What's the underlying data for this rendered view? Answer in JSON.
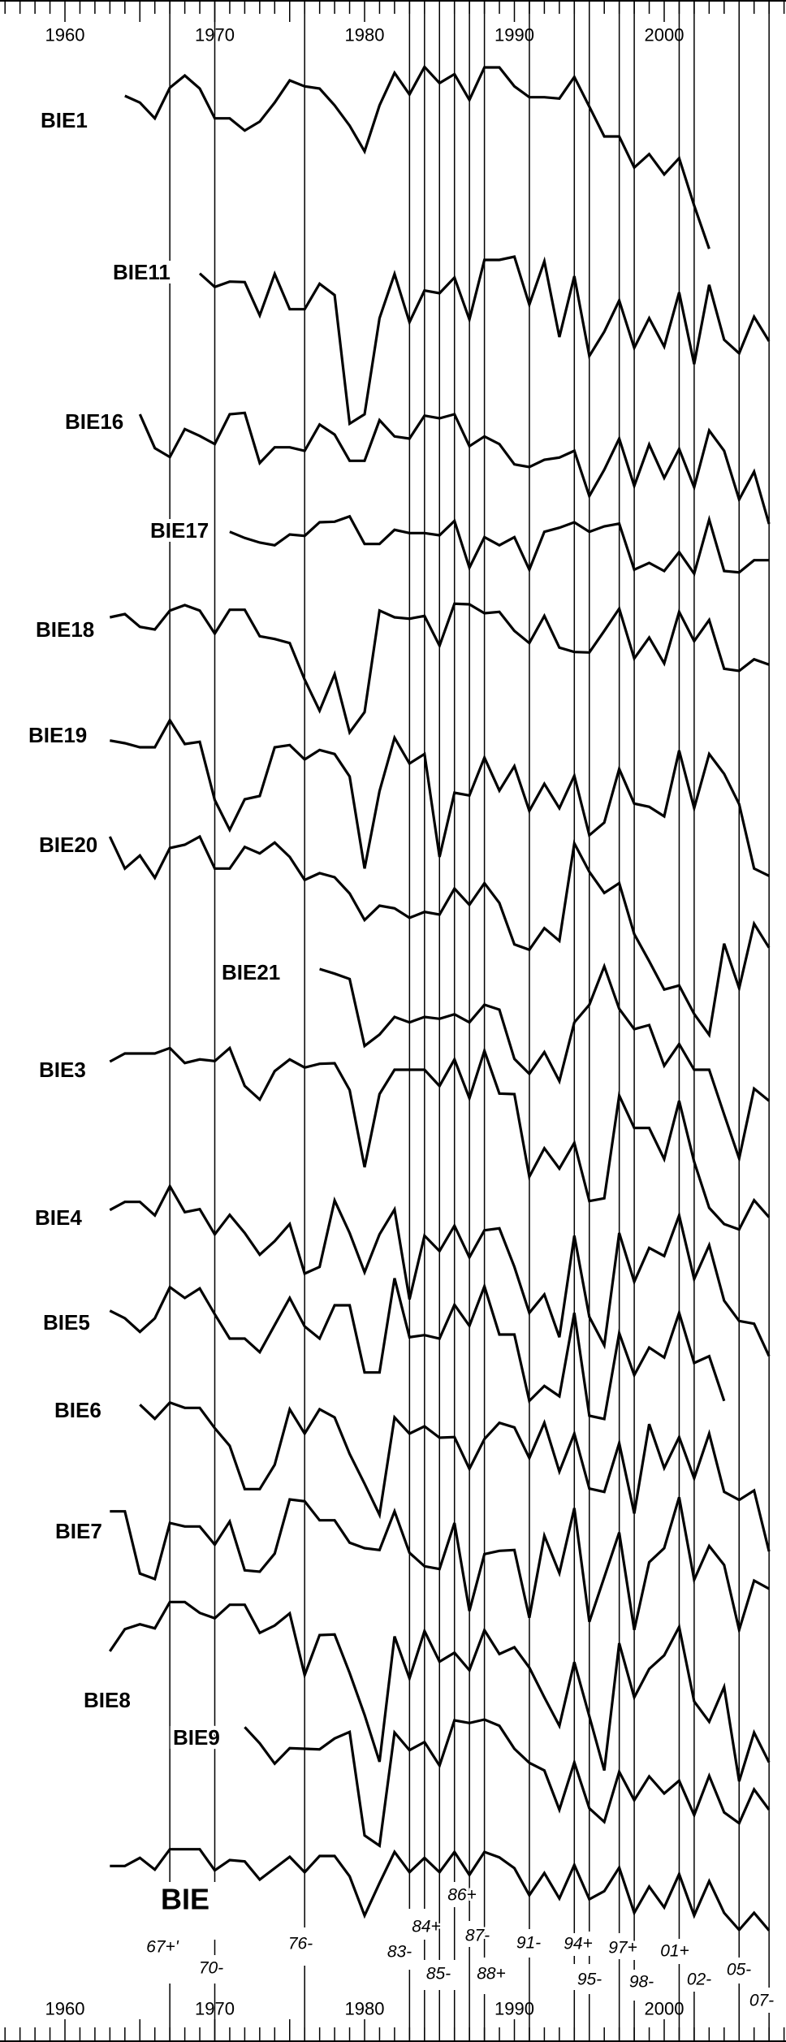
{
  "chart_data": {
    "type": "line",
    "title": "",
    "xlabel": "",
    "ylabel": "",
    "x_range": [
      1956,
      2008
    ],
    "x_tick_labels": [
      "1960",
      "1970",
      "1980",
      "1990",
      "2000"
    ],
    "x_tick_values": [
      1960,
      1970,
      1980,
      1990,
      2000
    ],
    "minor_tick_step": 1,
    "major_tick_step": 5,
    "axes": [
      "top",
      "bottom"
    ],
    "grid": false,
    "line_color": "#000000",
    "background": "#ffffff",
    "pointer_years": [
      {
        "year": 1967,
        "label": "67+'"
      },
      {
        "year": 1970,
        "label": "70-"
      },
      {
        "year": 1976,
        "label": "76-"
      },
      {
        "year": 1983,
        "label": "83-"
      },
      {
        "year": 1984,
        "label": "84+"
      },
      {
        "year": 1985,
        "label": "85-"
      },
      {
        "year": 1986,
        "label": "86+"
      },
      {
        "year": 1987,
        "label": "87-"
      },
      {
        "year": 1988,
        "label": "88+"
      },
      {
        "year": 1991,
        "label": "91-"
      },
      {
        "year": 1994,
        "label": "94+"
      },
      {
        "year": 1995,
        "label": "95-"
      },
      {
        "year": 1997,
        "label": "97+"
      },
      {
        "year": 1998,
        "label": "98-"
      },
      {
        "year": 2001,
        "label": "01+"
      },
      {
        "year": 2002,
        "label": "02-"
      },
      {
        "year": 2005,
        "label": "05-"
      },
      {
        "year": 2007,
        "label": "07-"
      }
    ],
    "series": [
      {
        "name": "BIE1",
        "start_year": 1964,
        "values": [
          0.9,
          0.65,
          0.07,
          1.2,
          1.65,
          1.17,
          0.07,
          0.07,
          -0.38,
          -0.05,
          0.65,
          1.47,
          1.25,
          1.17,
          0.55,
          -0.2,
          -1.15,
          0.55,
          1.75,
          0.95,
          1.97,
          1.37,
          1.7,
          0.75,
          1.95,
          1.95,
          1.25,
          0.85,
          0.85,
          0.8,
          1.6,
          0.5,
          -0.6,
          -0.6,
          -1.75,
          -1.25,
          -2.0,
          -1.4,
          -3.15,
          -4.75
        ]
      },
      {
        "name": "BIE11",
        "start_year": 1969,
        "values": [
          -0.05,
          -0.55,
          -0.35,
          -0.37,
          -1.6,
          -0.07,
          -1.37,
          -1.37,
          -0.43,
          -0.85,
          -5.6,
          -5.25,
          -1.7,
          -0.07,
          -1.85,
          -0.68,
          -0.78,
          -0.2,
          -1.75,
          0.45,
          0.45,
          0.57,
          -1.2,
          0.4,
          -2.4,
          -0.15,
          -3.1,
          -2.2,
          -1.05,
          -2.8,
          -1.7,
          -2.75,
          -0.75,
          -3.4,
          -0.47,
          -2.5,
          -3.0,
          -1.65,
          -2.55
        ]
      },
      {
        "name": "BIE16",
        "start_year": 1965,
        "values": [
          0.27,
          -0.98,
          -1.31,
          -0.28,
          -0.53,
          -0.83,
          0.27,
          0.32,
          -1.53,
          -0.95,
          -0.95,
          -1.08,
          -0.11,
          -0.48,
          -1.45,
          -1.45,
          0.05,
          -0.55,
          -0.63,
          0.22,
          0.12,
          0.27,
          -0.91,
          -0.55,
          -0.83,
          -1.58,
          -1.68,
          -1.41,
          -1.33,
          -1.08,
          -2.75,
          -1.78,
          -0.63,
          -2.38,
          -0.85,
          -2.08,
          -1.01,
          -2.43,
          -0.33,
          -1.08,
          -2.88,
          -1.85,
          -3.78
        ]
      },
      {
        "name": "BIE17",
        "start_year": 1971,
        "values": [
          -0.05,
          -0.28,
          -0.45,
          -0.55,
          -0.15,
          -0.2,
          0.3,
          0.32,
          0.52,
          -0.5,
          -0.5,
          0.02,
          -0.1,
          -0.1,
          -0.18,
          0.35,
          -1.38,
          -0.25,
          -0.55,
          -0.25,
          -1.45,
          -0.05,
          0.1,
          0.3,
          -0.05,
          0.15,
          0.25,
          -1.45,
          -1.2,
          -1.5,
          -0.8,
          -1.6,
          0.4,
          -1.5,
          -1.55,
          -1.1,
          -1.1
        ]
      },
      {
        "name": "BIE18",
        "start_year": 1963,
        "values": [
          0.45,
          0.57,
          0.1,
          0,
          0.7,
          0.9,
          0.7,
          -0.15,
          0.73,
          0.73,
          -0.25,
          -0.35,
          -0.5,
          -1.85,
          -3.0,
          -1.65,
          -3.8,
          -3.05,
          0.7,
          0.45,
          0.4,
          0.5,
          -0.6,
          0.95,
          0.93,
          0.6,
          0.65,
          -0.05,
          -0.5,
          0.5,
          -0.67,
          -0.83,
          -0.85,
          -0.05,
          0.77,
          -1.07,
          -0.3,
          -1.25,
          0.65,
          -0.43,
          0.35,
          -1.45,
          -1.53,
          -1.1,
          -1.3
        ]
      },
      {
        "name": "BIE19",
        "start_year": 1963,
        "values": [
          -0.2,
          -0.3,
          -0.45,
          -0.45,
          0.55,
          -0.33,
          -0.25,
          -2.4,
          -3.5,
          -2.37,
          -2.25,
          -0.45,
          -0.37,
          -0.9,
          -0.55,
          -0.7,
          -1.53,
          -4.93,
          -2.07,
          -0.1,
          -1.05,
          -0.7,
          -4.5,
          -2.13,
          -2.23,
          -0.83,
          -2.05,
          -1.15,
          -2.8,
          -1.8,
          -2.7,
          -1.5,
          -3.7,
          -3.23,
          -1.25,
          -2.53,
          -2.65,
          -3.0,
          -0.57,
          -2.7,
          -0.7,
          -1.43,
          -2.55,
          -4.93,
          -5.2
        ]
      },
      {
        "name": "BIE20",
        "start_year": 1963,
        "values": [
          0.3,
          -0.88,
          -0.4,
          -1.22,
          -0.12,
          0,
          0.3,
          -0.88,
          -0.88,
          -0.08,
          -0.32,
          0.08,
          -0.45,
          -1.3,
          -1.05,
          -1.2,
          -1.8,
          -2.78,
          -2.25,
          -2.35,
          -2.7,
          -2.48,
          -2.58,
          -1.62,
          -2.22,
          -1.42,
          -2.15,
          -3.68,
          -3.88,
          -3.08,
          -3.55,
          0.05,
          -1.0,
          -1.78,
          -1.42,
          -3.3,
          -4.3,
          -5.35,
          -5.2,
          -6.25,
          -7.02,
          -3.65,
          -5.3,
          -2.92,
          -3.8
        ]
      },
      {
        "name": "BIE21",
        "start_year": 1977,
        "values": [
          0.12,
          -0.05,
          -0.25,
          -2.72,
          -2.3,
          -1.65,
          -1.85,
          -1.65,
          -1.72,
          -1.55,
          -1.85,
          -1.2,
          -1.38,
          -3.2,
          -3.75,
          -2.95,
          -4.02,
          -1.85,
          -1.2,
          0.22,
          -1.35,
          -2.1,
          -1.95,
          -3.45,
          -2.65,
          -3.6,
          -3.6,
          -5.25,
          -6.88,
          -4.3,
          -4.75
        ]
      },
      {
        "name": "BIE3",
        "start_year": 1963,
        "values": [
          0.3,
          0.6,
          0.6,
          0.6,
          0.8,
          0.25,
          0.38,
          0.32,
          0.8,
          -0.6,
          -1.1,
          -0.05,
          0.38,
          0.08,
          0.22,
          0.24,
          -0.75,
          -3.6,
          -0.9,
          0,
          0,
          0,
          -0.6,
          0.38,
          -1.05,
          0.7,
          -0.88,
          -0.9,
          -3.95,
          -2.9,
          -3.65,
          -2.7,
          -4.85,
          -4.75,
          -0.95,
          -2.15,
          -2.15,
          -3.3,
          -1.15,
          -3.4,
          -5.1,
          -5.7,
          -5.9,
          -4.82,
          -5.45
        ]
      },
      {
        "name": "BIE4",
        "start_year": 1963,
        "values": [
          0.28,
          0.58,
          0.58,
          0.08,
          1.16,
          0.2,
          0.31,
          -0.62,
          0.1,
          -0.57,
          -1.37,
          -0.87,
          -0.24,
          -2.07,
          -1.82,
          0.63,
          -0.57,
          -2.02,
          -0.62,
          0.3,
          -3.02,
          -0.67,
          -1.24,
          -0.3,
          -1.47,
          -0.47,
          -0.4,
          -1.82,
          -3.52,
          -2.84,
          -4.42,
          -0.67,
          -3.67,
          -4.72,
          -0.57,
          -2.37,
          -1.12,
          -1.42,
          0.08,
          -2.27,
          -1.02,
          -3.07,
          -3.82,
          -3.92,
          -5.12
        ]
      },
      {
        "name": "BIE5",
        "start_year": 1963,
        "values": [
          0.43,
          0.15,
          -0.35,
          0.15,
          1.3,
          0.9,
          1.25,
          0.3,
          -0.6,
          -0.6,
          -1.1,
          -0.1,
          0.9,
          -0.15,
          -0.6,
          0.63,
          0.63,
          -1.85,
          -1.85,
          1.63,
          -0.55,
          -0.47,
          -0.6,
          0.65,
          -0.13,
          1.33,
          -0.45,
          -0.45,
          -2.9,
          -2.35,
          -2.73,
          0.35,
          -3.45,
          -3.57,
          -0.4,
          -1.95,
          -0.93,
          -1.3,
          0.35,
          -1.5,
          -1.25,
          -2.9
        ]
      },
      {
        "name": "BIE6",
        "start_year": 1965,
        "values": [
          0.2,
          -0.32,
          0.28,
          0.08,
          0.08,
          -0.67,
          -1.32,
          -2.92,
          -2.92,
          -2.02,
          0.03,
          -0.87,
          0.03,
          -0.27,
          -1.62,
          -2.72,
          -3.87,
          -0.27,
          -0.87,
          -0.6,
          -1.02,
          -1.0,
          -2.17,
          -1.07,
          -0.47,
          -0.64,
          -1.77,
          -0.47,
          -2.27,
          -0.87,
          -2.9,
          -3.02,
          -1.22,
          -3.82,
          -0.52,
          -2.14,
          -1.0,
          -2.52,
          -0.87,
          -3.02,
          -3.32,
          -2.97,
          -5.22
        ]
      },
      {
        "name": "BIE7",
        "start_year": 1963,
        "values": [
          0.73,
          0.73,
          -1.57,
          -1.77,
          0.3,
          0.17,
          0.17,
          -0.5,
          0.35,
          -1.45,
          -1.5,
          -0.83,
          1.17,
          1.1,
          0.4,
          0.4,
          -0.43,
          -0.63,
          -0.7,
          0.73,
          -0.8,
          -1.3,
          -1.4,
          0.3,
          -2.95,
          -0.85,
          -0.73,
          -0.7,
          -3.2,
          -0.17,
          -1.55,
          0.85,
          -3.35,
          -1.7,
          -0.05,
          -3.65,
          -1.15,
          -0.63,
          1.25,
          -1.8,
          -0.55,
          -1.25,
          -3.65,
          -1.83,
          -2.13
        ]
      },
      {
        "name": "BIE8",
        "start_year": 1963,
        "values": [
          0.78,
          1.6,
          1.78,
          1.63,
          2.6,
          2.6,
          2.2,
          2.0,
          2.5,
          2.5,
          1.46,
          1.73,
          2.18,
          -0.1,
          1.38,
          1.4,
          -0.02,
          -1.57,
          -3.3,
          1.33,
          -0.22,
          1.53,
          0.4,
          0.73,
          0.08,
          1.56,
          0.68,
          0.93,
          0.18,
          -0.92,
          -1.97,
          0.38,
          -1.62,
          -3.62,
          1.08,
          -0.92,
          0.13,
          0.63,
          1.68,
          -1.07,
          -1.82,
          -0.54,
          -4.02,
          -2.22,
          -3.32
        ]
      },
      {
        "name": "BIE9",
        "start_year": 1972,
        "values": [
          0.38,
          -0.22,
          -0.97,
          -0.4,
          -0.42,
          -0.44,
          -0.04,
          0.2,
          -3.62,
          -4.0,
          0.18,
          -0.47,
          -0.17,
          -1.04,
          0.63,
          0.53,
          0.66,
          0.43,
          -0.42,
          -0.94,
          -1.22,
          -2.67,
          -0.92,
          -2.62,
          -3.12,
          -1.27,
          -2.32,
          -1.44,
          -2.07,
          -1.6,
          -2.87,
          -1.42,
          -2.77,
          -3.17,
          -1.92,
          -2.67
        ]
      },
      {
        "name": "BIE",
        "start_year": 1963,
        "values": [
          0.08,
          0.08,
          0.38,
          -0.05,
          0.7,
          0.7,
          0.7,
          -0.08,
          0.3,
          0.25,
          -0.42,
          0,
          0.42,
          -0.15,
          0.45,
          0.45,
          -0.3,
          -1.75,
          -0.55,
          0.6,
          -0.15,
          0.38,
          -0.15,
          0.6,
          -0.25,
          0.6,
          0.4,
          0,
          -1.0,
          -0.18,
          -1.12,
          0.12,
          -1.15,
          -0.85,
          0.02,
          -1.65,
          -0.68,
          -1.45,
          -0.22,
          -1.75,
          -0.48,
          -1.65,
          -2.28,
          -1.65,
          -2.3
        ]
      }
    ]
  }
}
